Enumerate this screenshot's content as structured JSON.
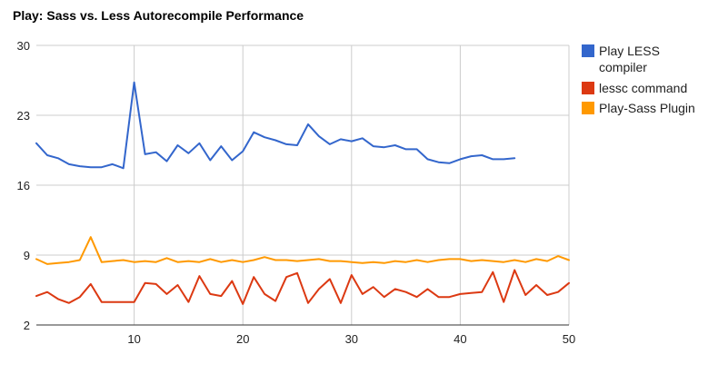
{
  "chart_data": {
    "type": "line",
    "title": "Play: Sass vs. Less Autorecompile Performance",
    "xlabel": "",
    "ylabel": "",
    "xlim": [
      1,
      50
    ],
    "ylim": [
      2,
      30
    ],
    "xticks": [
      10,
      20,
      30,
      40,
      50
    ],
    "yticks": [
      2,
      9,
      16,
      23,
      30
    ],
    "grid": "vertical",
    "legend_position": "right",
    "series": [
      {
        "name": "Play LESS compiler",
        "color": "#3366cc",
        "x": [
          1,
          2,
          3,
          4,
          5,
          6,
          7,
          8,
          9,
          10,
          11,
          12,
          13,
          14,
          15,
          16,
          17,
          18,
          19,
          20,
          21,
          22,
          23,
          24,
          25,
          26,
          27,
          28,
          29,
          30,
          31,
          32,
          33,
          34,
          35,
          36,
          37,
          38,
          39,
          40,
          41,
          42,
          43,
          44,
          45
        ],
        "values": [
          20.2,
          19.0,
          18.7,
          18.1,
          17.9,
          17.8,
          17.8,
          18.1,
          17.7,
          26.3,
          19.1,
          19.3,
          18.4,
          20.0,
          19.2,
          20.2,
          18.5,
          19.9,
          18.5,
          19.4,
          21.3,
          20.8,
          20.5,
          20.1,
          20.0,
          22.1,
          20.9,
          20.1,
          20.6,
          20.4,
          20.7,
          19.9,
          19.8,
          20.0,
          19.6,
          19.6,
          18.6,
          18.3,
          18.2,
          18.6,
          18.9,
          19.0,
          18.6,
          18.6,
          18.7
        ]
      },
      {
        "name": "lessc command",
        "color": "#dc3912",
        "x": [
          1,
          2,
          3,
          4,
          5,
          6,
          7,
          8,
          9,
          10,
          11,
          12,
          13,
          14,
          15,
          16,
          17,
          18,
          19,
          20,
          21,
          22,
          23,
          24,
          25,
          26,
          27,
          28,
          29,
          30,
          31,
          32,
          33,
          34,
          35,
          36,
          37,
          38,
          39,
          40,
          41,
          42,
          43,
          44,
          45,
          46,
          47,
          48,
          49,
          50
        ],
        "values": [
          4.9,
          5.3,
          4.6,
          4.2,
          4.8,
          6.1,
          4.3,
          4.3,
          4.3,
          4.3,
          6.2,
          6.1,
          5.1,
          6.0,
          4.3,
          6.9,
          5.1,
          4.9,
          6.4,
          4.1,
          6.8,
          5.1,
          4.4,
          6.8,
          7.2,
          4.2,
          5.6,
          6.6,
          4.2,
          7.0,
          5.1,
          5.8,
          4.8,
          5.6,
          5.3,
          4.8,
          5.6,
          4.8,
          4.8,
          5.1,
          5.2,
          5.3,
          7.3,
          4.3,
          7.5,
          5.0,
          6.0,
          5.0,
          5.3,
          6.2
        ]
      },
      {
        "name": "Play-Sass Plugin",
        "color": "#ff9900",
        "x": [
          1,
          2,
          3,
          4,
          5,
          6,
          7,
          8,
          9,
          10,
          11,
          12,
          13,
          14,
          15,
          16,
          17,
          18,
          19,
          20,
          21,
          22,
          23,
          24,
          25,
          26,
          27,
          28,
          29,
          30,
          31,
          32,
          33,
          34,
          35,
          36,
          37,
          38,
          39,
          40,
          41,
          42,
          43,
          44,
          45,
          46,
          47,
          48,
          49,
          50
        ],
        "values": [
          8.6,
          8.1,
          8.2,
          8.3,
          8.5,
          10.8,
          8.3,
          8.4,
          8.5,
          8.3,
          8.4,
          8.3,
          8.7,
          8.3,
          8.4,
          8.3,
          8.6,
          8.3,
          8.5,
          8.3,
          8.5,
          8.8,
          8.5,
          8.5,
          8.4,
          8.5,
          8.6,
          8.4,
          8.4,
          8.3,
          8.2,
          8.3,
          8.2,
          8.4,
          8.3,
          8.5,
          8.3,
          8.5,
          8.6,
          8.6,
          8.4,
          8.5,
          8.4,
          8.3,
          8.5,
          8.3,
          8.6,
          8.4,
          8.9,
          8.5
        ]
      }
    ]
  }
}
